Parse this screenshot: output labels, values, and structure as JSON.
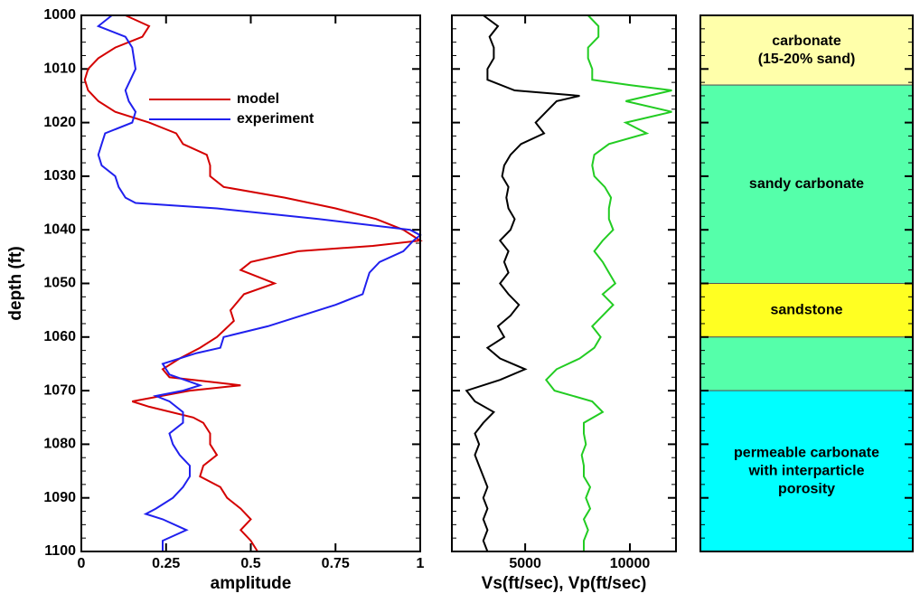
{
  "chart_data": [
    {
      "type": "line",
      "ylabel": "depth (ft)",
      "xlabel": "amplitude",
      "xlim": [
        0,
        1
      ],
      "xticks": [
        0,
        0.25,
        0.5,
        0.75,
        1
      ],
      "ylim": [
        1000,
        1100
      ],
      "yticks": [
        1000,
        1010,
        1020,
        1030,
        1040,
        1050,
        1060,
        1070,
        1080,
        1090,
        1100
      ],
      "y_inverted": true,
      "legend": "upper-center",
      "series": [
        {
          "name": "model",
          "color": "#d40000",
          "depth": [
            1000,
            1002,
            1004,
            1006,
            1008,
            1010,
            1012,
            1014,
            1016,
            1018,
            1020,
            1022,
            1024,
            1026,
            1028,
            1030,
            1032,
            1034,
            1036,
            1038,
            1040,
            1042,
            1043,
            1044,
            1046,
            1047.5,
            1050,
            1052,
            1055,
            1057,
            1060,
            1062,
            1064,
            1066,
            1067.5,
            1069,
            1070,
            1072,
            1073,
            1075,
            1076,
            1078,
            1080,
            1082,
            1084,
            1086,
            1088,
            1090,
            1092,
            1094,
            1096,
            1098,
            1100
          ],
          "values": [
            0.13,
            0.2,
            0.18,
            0.1,
            0.05,
            0.02,
            0.01,
            0.02,
            0.05,
            0.1,
            0.2,
            0.28,
            0.3,
            0.37,
            0.38,
            0.38,
            0.42,
            0.6,
            0.75,
            0.87,
            0.95,
            1.0,
            0.86,
            0.64,
            0.5,
            0.47,
            0.57,
            0.48,
            0.44,
            0.45,
            0.4,
            0.35,
            0.29,
            0.24,
            0.26,
            0.47,
            0.32,
            0.15,
            0.2,
            0.33,
            0.36,
            0.38,
            0.38,
            0.4,
            0.36,
            0.35,
            0.41,
            0.43,
            0.47,
            0.5,
            0.47,
            0.5,
            0.52
          ]
        },
        {
          "name": "experiment",
          "color": "#2020ee",
          "depth": [
            1000,
            1002,
            1004,
            1006,
            1010,
            1014,
            1016,
            1018,
            1020,
            1022,
            1024,
            1026,
            1028,
            1030,
            1032,
            1034,
            1035,
            1036,
            1038,
            1040,
            1041,
            1042,
            1044,
            1046,
            1048,
            1050,
            1052,
            1054,
            1056,
            1058,
            1060,
            1062,
            1063,
            1065,
            1067,
            1069,
            1070,
            1071,
            1072,
            1074,
            1076,
            1078,
            1080,
            1082,
            1084,
            1086,
            1088,
            1090,
            1092,
            1093,
            1094,
            1096,
            1098,
            1100
          ],
          "values": [
            0.09,
            0.05,
            0.13,
            0.15,
            0.16,
            0.13,
            0.14,
            0.16,
            0.15,
            0.07,
            0.06,
            0.05,
            0.06,
            0.1,
            0.11,
            0.13,
            0.16,
            0.4,
            0.7,
            0.97,
            1.0,
            0.98,
            0.95,
            0.88,
            0.85,
            0.84,
            0.83,
            0.75,
            0.65,
            0.55,
            0.42,
            0.41,
            0.34,
            0.24,
            0.26,
            0.35,
            0.3,
            0.22,
            0.26,
            0.3,
            0.3,
            0.26,
            0.27,
            0.29,
            0.32,
            0.32,
            0.3,
            0.27,
            0.22,
            0.19,
            0.24,
            0.31,
            0.24,
            0.24
          ]
        }
      ]
    },
    {
      "type": "line",
      "xlabel": "Vs(ft/sec),  Vp(ft/sec)",
      "xlim": [
        1500,
        12200
      ],
      "xticks": [
        5000,
        10000
      ],
      "ylim": [
        1000,
        1100
      ],
      "yticks": [
        1000,
        1010,
        1020,
        1030,
        1040,
        1050,
        1060,
        1070,
        1080,
        1090,
        1100
      ],
      "y_inverted": true,
      "series": [
        {
          "color": "#000000",
          "depth": [
            1000,
            1002,
            1004,
            1006,
            1008,
            1010,
            1012,
            1014,
            1015,
            1016,
            1018,
            1020,
            1022,
            1024,
            1026,
            1028,
            1030,
            1032,
            1034,
            1036,
            1038,
            1040,
            1042,
            1044,
            1046,
            1048,
            1050,
            1052,
            1054,
            1056,
            1058,
            1060,
            1062,
            1064,
            1066,
            1068,
            1070,
            1072,
            1074,
            1076,
            1078,
            1080,
            1082,
            1084,
            1086,
            1088,
            1090,
            1092,
            1094,
            1096,
            1098,
            1100
          ],
          "values": [
            3000,
            3700,
            3300,
            3500,
            3500,
            3200,
            3200,
            4500,
            7600,
            6500,
            6000,
            5500,
            5900,
            4800,
            4300,
            4000,
            3900,
            4200,
            4100,
            4200,
            4500,
            4300,
            3800,
            4200,
            4000,
            4200,
            3800,
            4200,
            4700,
            4300,
            3700,
            4000,
            3200,
            3800,
            5000,
            3800,
            2200,
            2600,
            3500,
            3000,
            2600,
            2800,
            2600,
            2800,
            3000,
            3200,
            3000,
            3200,
            3000,
            3200,
            3000,
            3200
          ]
        },
        {
          "color": "#22cc22",
          "depth": [
            1000,
            1002,
            1004,
            1006,
            1008,
            1010,
            1012,
            1013,
            1014,
            1016,
            1018,
            1020,
            1022,
            1024,
            1026,
            1028,
            1030,
            1032,
            1034,
            1036,
            1038,
            1040,
            1042,
            1044,
            1046,
            1048,
            1050,
            1052,
            1054,
            1056,
            1058,
            1060,
            1062,
            1064,
            1066,
            1068,
            1070,
            1072,
            1074,
            1076,
            1078,
            1080,
            1082,
            1084,
            1086,
            1088,
            1090,
            1092,
            1094,
            1096,
            1098,
            1100
          ],
          "values": [
            8000,
            8500,
            8500,
            8000,
            8000,
            8200,
            8200,
            10000,
            12000,
            9800,
            12000,
            9800,
            10800,
            9000,
            8300,
            8200,
            8300,
            8800,
            9100,
            9000,
            9000,
            9200,
            8700,
            8300,
            8700,
            9000,
            9300,
            8700,
            9200,
            8700,
            8200,
            8600,
            8300,
            7600,
            6500,
            6000,
            6400,
            8200,
            8700,
            7800,
            7800,
            7900,
            7700,
            7800,
            7800,
            8100,
            7900,
            8100,
            7800,
            8000,
            7800,
            7800
          ]
        }
      ]
    },
    {
      "type": "strata",
      "ylim": [
        1000,
        1100
      ],
      "yticks": [
        1000,
        1010,
        1020,
        1030,
        1040,
        1050,
        1060,
        1070,
        1080,
        1090,
        1100
      ],
      "y_inverted": true,
      "layers": [
        {
          "top": 1000,
          "bottom": 1013,
          "color": "#ffffaa",
          "label": [
            "carbonate",
            "(15-20% sand)"
          ]
        },
        {
          "top": 1013,
          "bottom": 1050,
          "color": "#55ffaa",
          "label": [
            "sandy carbonate"
          ]
        },
        {
          "top": 1050,
          "bottom": 1060,
          "color": "#ffff22",
          "label": [
            "sandstone"
          ]
        },
        {
          "top": 1060,
          "bottom": 1070,
          "color": "#55ffaa",
          "label": []
        },
        {
          "top": 1070,
          "bottom": 1100,
          "color": "#00ffff",
          "label": [
            "permeable carbonate",
            "with interparticle",
            "porosity"
          ]
        }
      ]
    }
  ]
}
